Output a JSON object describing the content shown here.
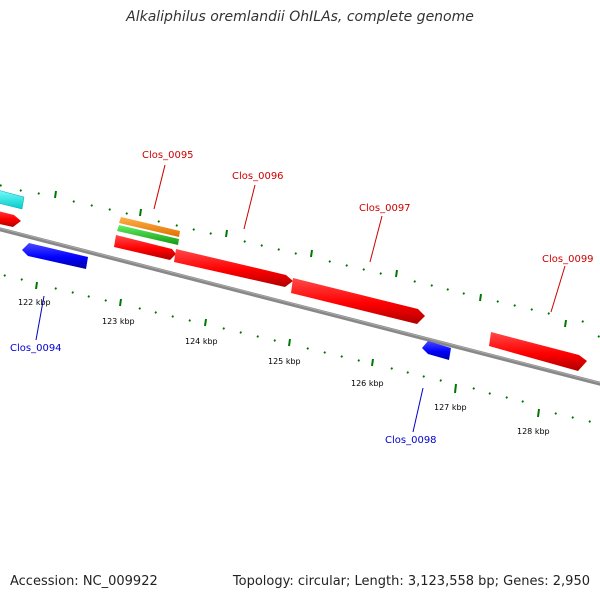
{
  "title": "Alkaliphilus oremlandii OhILAs, complete genome",
  "footer": {
    "accession": "Accession: NC_009922",
    "summary": "Topology: circular; Length: 3,123,558 bp; Genes: 2,950"
  },
  "scale_labels": [
    "122 kbp",
    "123 kbp",
    "124 kbp",
    "125 kbp",
    "126 kbp",
    "127 kbp",
    "128 kbp"
  ],
  "genes": [
    {
      "name": "Clos_0094",
      "strand": "reverse",
      "color": "#0000ee"
    },
    {
      "name": "Clos_0095",
      "strand": "forward",
      "color": "#dd0000"
    },
    {
      "name": "Clos_0096",
      "strand": "forward",
      "color": "#dd0000"
    },
    {
      "name": "Clos_0097",
      "strand": "forward",
      "color": "#dd0000"
    },
    {
      "name": "Clos_0098",
      "strand": "reverse",
      "color": "#0000ee"
    },
    {
      "name": "Clos_0099",
      "strand": "forward",
      "color": "#dd0000"
    }
  ],
  "colors": {
    "forward_gene": "#ff0000",
    "reverse_gene": "#0000ff",
    "backbone": "#888888",
    "tick": "#007700",
    "feature_orange": "#ff8800",
    "feature_green": "#22cc22",
    "feature_cyan": "#00ffff"
  }
}
